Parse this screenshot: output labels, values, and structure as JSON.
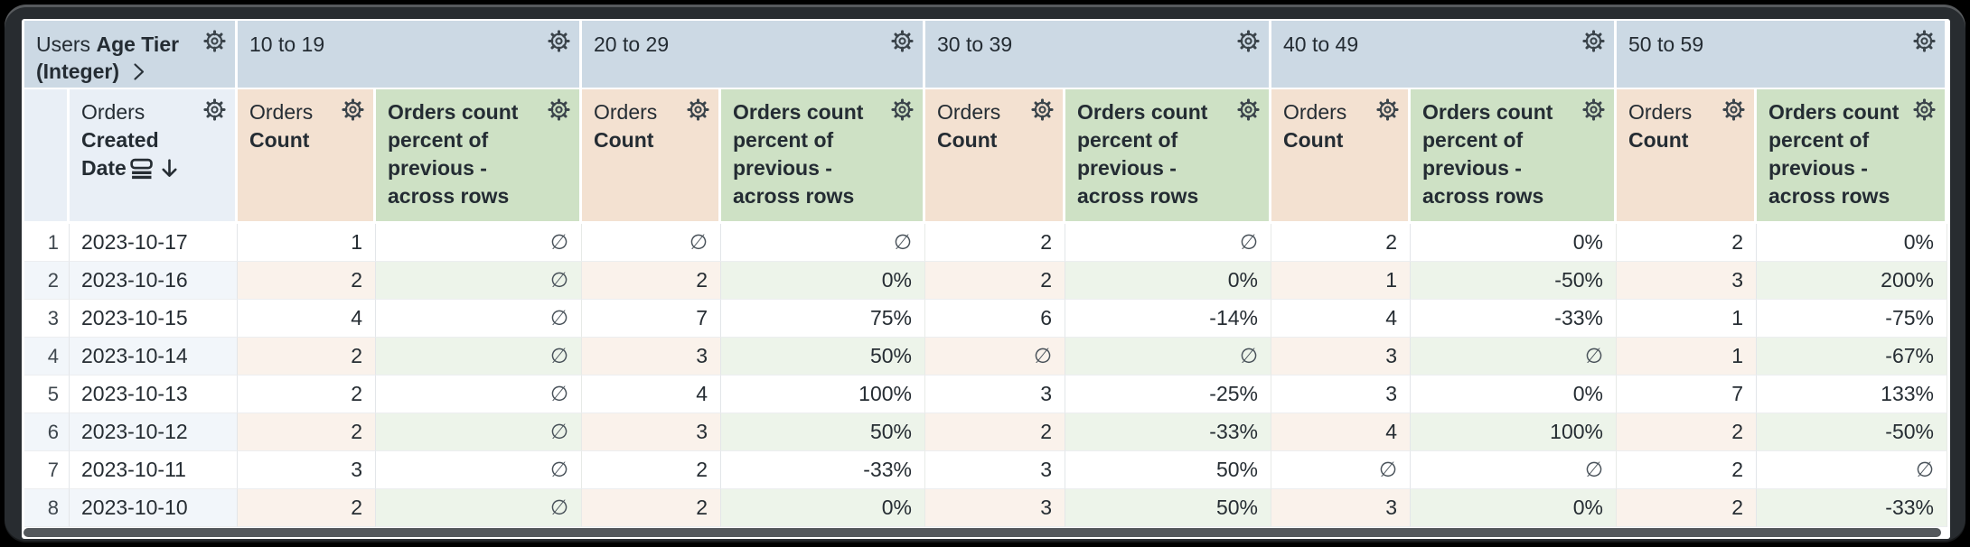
{
  "table": {
    "row_field": {
      "view": "Users",
      "field": "Age Tier (Integer)"
    },
    "date_field": {
      "view": "Orders",
      "field": "Created Date"
    },
    "pivot_values": [
      "10 to 19",
      "20 to 29",
      "30 to 39",
      "40 to 49",
      "50 to 59"
    ],
    "measure_count": {
      "view": "Orders",
      "field": "Count"
    },
    "measure_percent": {
      "label": "Orders count percent of previous - across rows"
    },
    "null_symbol": "∅",
    "rows": [
      {
        "num": "1",
        "date": "2023-10-17",
        "cells": [
          "1",
          "∅",
          "∅",
          "∅",
          "2",
          "∅",
          "2",
          "0%",
          "2",
          "0%"
        ]
      },
      {
        "num": "2",
        "date": "2023-10-16",
        "cells": [
          "2",
          "∅",
          "2",
          "0%",
          "2",
          "0%",
          "1",
          "-50%",
          "3",
          "200%"
        ]
      },
      {
        "num": "3",
        "date": "2023-10-15",
        "cells": [
          "4",
          "∅",
          "7",
          "75%",
          "6",
          "-14%",
          "4",
          "-33%",
          "1",
          "-75%"
        ]
      },
      {
        "num": "4",
        "date": "2023-10-14",
        "cells": [
          "2",
          "∅",
          "3",
          "50%",
          "∅",
          "∅",
          "3",
          "∅",
          "1",
          "-67%"
        ]
      },
      {
        "num": "5",
        "date": "2023-10-13",
        "cells": [
          "2",
          "∅",
          "4",
          "100%",
          "3",
          "-25%",
          "3",
          "0%",
          "7",
          "133%"
        ]
      },
      {
        "num": "6",
        "date": "2023-10-12",
        "cells": [
          "2",
          "∅",
          "3",
          "50%",
          "2",
          "-33%",
          "4",
          "100%",
          "2",
          "-50%"
        ]
      },
      {
        "num": "7",
        "date": "2023-10-11",
        "cells": [
          "3",
          "∅",
          "2",
          "-33%",
          "3",
          "50%",
          "∅",
          "∅",
          "2",
          "∅"
        ]
      },
      {
        "num": "8",
        "date": "2023-10-10",
        "cells": [
          "2",
          "∅",
          "2",
          "0%",
          "3",
          "50%",
          "3",
          "0%",
          "2",
          "-33%"
        ]
      }
    ]
  },
  "colors": {
    "pivot_header": "#ccd9e4",
    "dim_header": "#e9eff6",
    "count_header": "#f3e1d1",
    "percent_header": "#cee1c5",
    "stripe_base": "#f2f6fa",
    "stripe_count": "#faf2eb",
    "stripe_percent": "#edf4ea",
    "text": "#262d33"
  }
}
